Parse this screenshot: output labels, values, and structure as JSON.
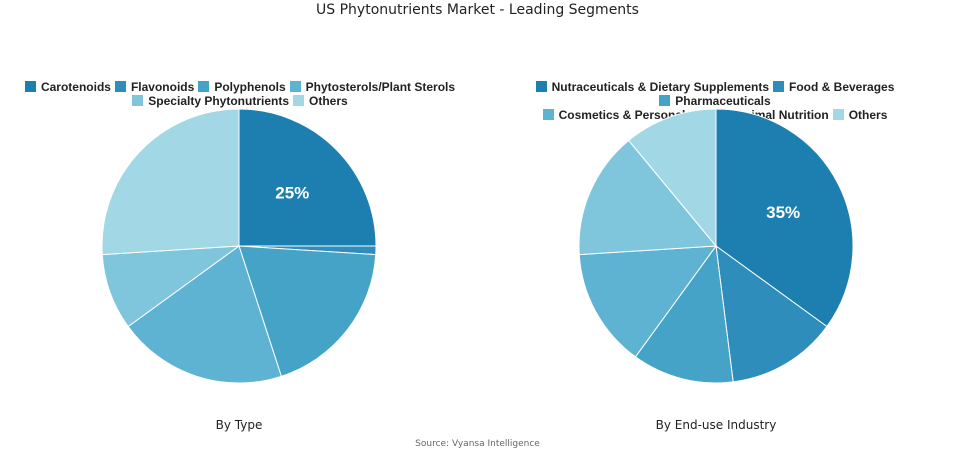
{
  "title": "US Phytonutrients Market - Leading Segments",
  "source": "Source: Vyansa Intelligence",
  "chart_data": [
    {
      "type": "pie",
      "subtitle": "By Type",
      "categories": [
        "Carotenoids",
        "Flavonoids",
        "Polyphenols",
        "Phytosterols/Plant Sterols",
        "Specialty Phytonutrients",
        "Others"
      ],
      "values": [
        25,
        1,
        19,
        20,
        9,
        26
      ],
      "colors": [
        "#1c7fb0",
        "#2e8dba",
        "#45a3c8",
        "#5eb2d2",
        "#7fc5dc",
        "#a2d8e6"
      ],
      "data_labels": [
        "25%",
        "",
        "",
        "",
        "",
        ""
      ],
      "legend": "top"
    },
    {
      "type": "pie",
      "subtitle": "By End-use Industry",
      "categories": [
        "Nutraceuticals & Dietary Supplements",
        "Food & Beverages",
        "Pharmaceuticals",
        "Cosmetics & Personal Care",
        "Animal Nutrition",
        "Others"
      ],
      "values": [
        35,
        13,
        12,
        14,
        15,
        11
      ],
      "colors": [
        "#1c7fb0",
        "#2e8dba",
        "#45a3c8",
        "#5eb2d2",
        "#7fc5dc",
        "#a2d8e6"
      ],
      "data_labels": [
        "35%",
        "",
        "",
        "",
        "",
        ""
      ],
      "legend": "top"
    }
  ]
}
